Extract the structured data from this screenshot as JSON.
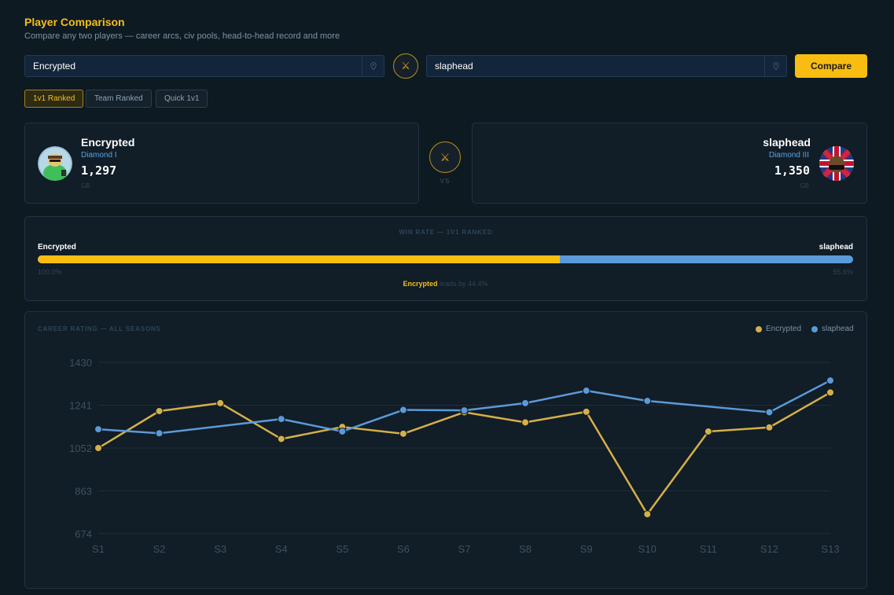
{
  "header": {
    "title": "Player Comparison",
    "subtitle": "Compare any two players — career arcs, civ pools, head-to-head record and more"
  },
  "search": {
    "player1_value": "Encrypted",
    "player2_value": "slaphead",
    "vs_icon": "crossed-swords-icon",
    "compare_label": "Compare"
  },
  "modes": [
    {
      "label": "1v1 Ranked",
      "active": true
    },
    {
      "label": "Team Ranked",
      "active": false
    },
    {
      "label": "Quick 1v1",
      "active": false
    }
  ],
  "players": {
    "p1": {
      "name": "Encrypted",
      "rank": "Diamond I",
      "rating": "1,297",
      "region": "GB"
    },
    "p2": {
      "name": "slaphead",
      "rank": "Diamond III",
      "rating": "1,350",
      "region": "GB"
    },
    "vs_label": "VS"
  },
  "win_rate": {
    "title": "WIN RATE — 1V1 RANKED",
    "p1_name": "Encrypted",
    "p2_name": "slaphead",
    "p1_pct": "100.0%",
    "p2_pct": "55.6%",
    "p1_share": 64.0,
    "leader": "Encrypted",
    "lead_text": "leads by 44.4%"
  },
  "colors": {
    "accent": "#f8bd10",
    "p1": "#d4b048",
    "p2": "#5b9ad8"
  },
  "chart_data": {
    "type": "line",
    "title": "CAREER RATING — ALL SEASONS",
    "categories": [
      "S1",
      "S2",
      "S3",
      "S4",
      "S5",
      "S6",
      "S7",
      "S8",
      "S9",
      "S10",
      "S11",
      "S12",
      "S13"
    ],
    "y_ticks": [
      674,
      863,
      1052,
      1241,
      1430
    ],
    "ylim": [
      674,
      1430
    ],
    "grid": true,
    "legend_position": "top-right",
    "series": [
      {
        "name": "Encrypted",
        "color": "#d4b048",
        "values": [
          1052,
          1215,
          1250,
          1092,
          1145,
          1115,
          1210,
          1165,
          1212,
          760,
          1125,
          1143,
          1297
        ]
      },
      {
        "name": "slaphead",
        "color": "#5b9ad8",
        "values": [
          1135,
          1117,
          null,
          1180,
          1125,
          1220,
          1218,
          1250,
          1305,
          1260,
          null,
          1210,
          1350
        ]
      }
    ]
  }
}
